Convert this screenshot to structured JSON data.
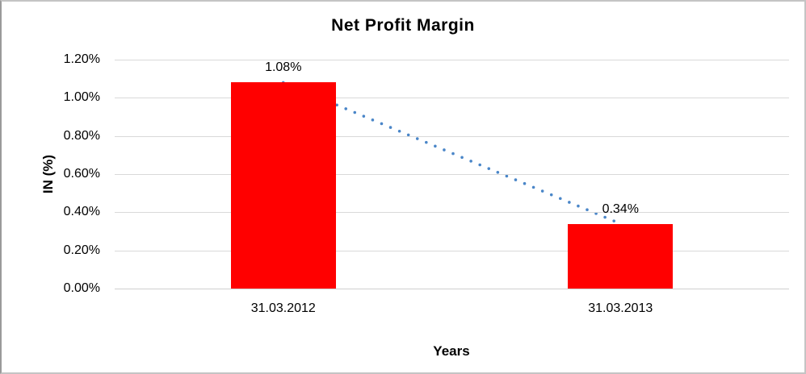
{
  "window": {
    "background": "#ffffff",
    "border_color": "#c4c4c4"
  },
  "chart_data": {
    "type": "bar",
    "title": "Net Profit Margin",
    "xlabel": "Years",
    "ylabel": "IN (%)",
    "categories": [
      "31.03.2012",
      "31.03.2013"
    ],
    "values": [
      1.08,
      0.34
    ],
    "value_labels": [
      "1.08%",
      "0.34%"
    ],
    "yticks": [
      "0.00%",
      "0.20%",
      "0.40%",
      "0.60%",
      "0.80%",
      "1.00%",
      "1.20%"
    ],
    "ylim": [
      0,
      1.2
    ],
    "grid": "horizontal",
    "legend": "none",
    "bar_color": "#ff0000",
    "gridline_color": "#d9d9d9",
    "trendline": {
      "type": "linear",
      "style": "dotted",
      "color": "#4a86c8",
      "connects": [
        "1.08%",
        "0.34%"
      ]
    }
  }
}
